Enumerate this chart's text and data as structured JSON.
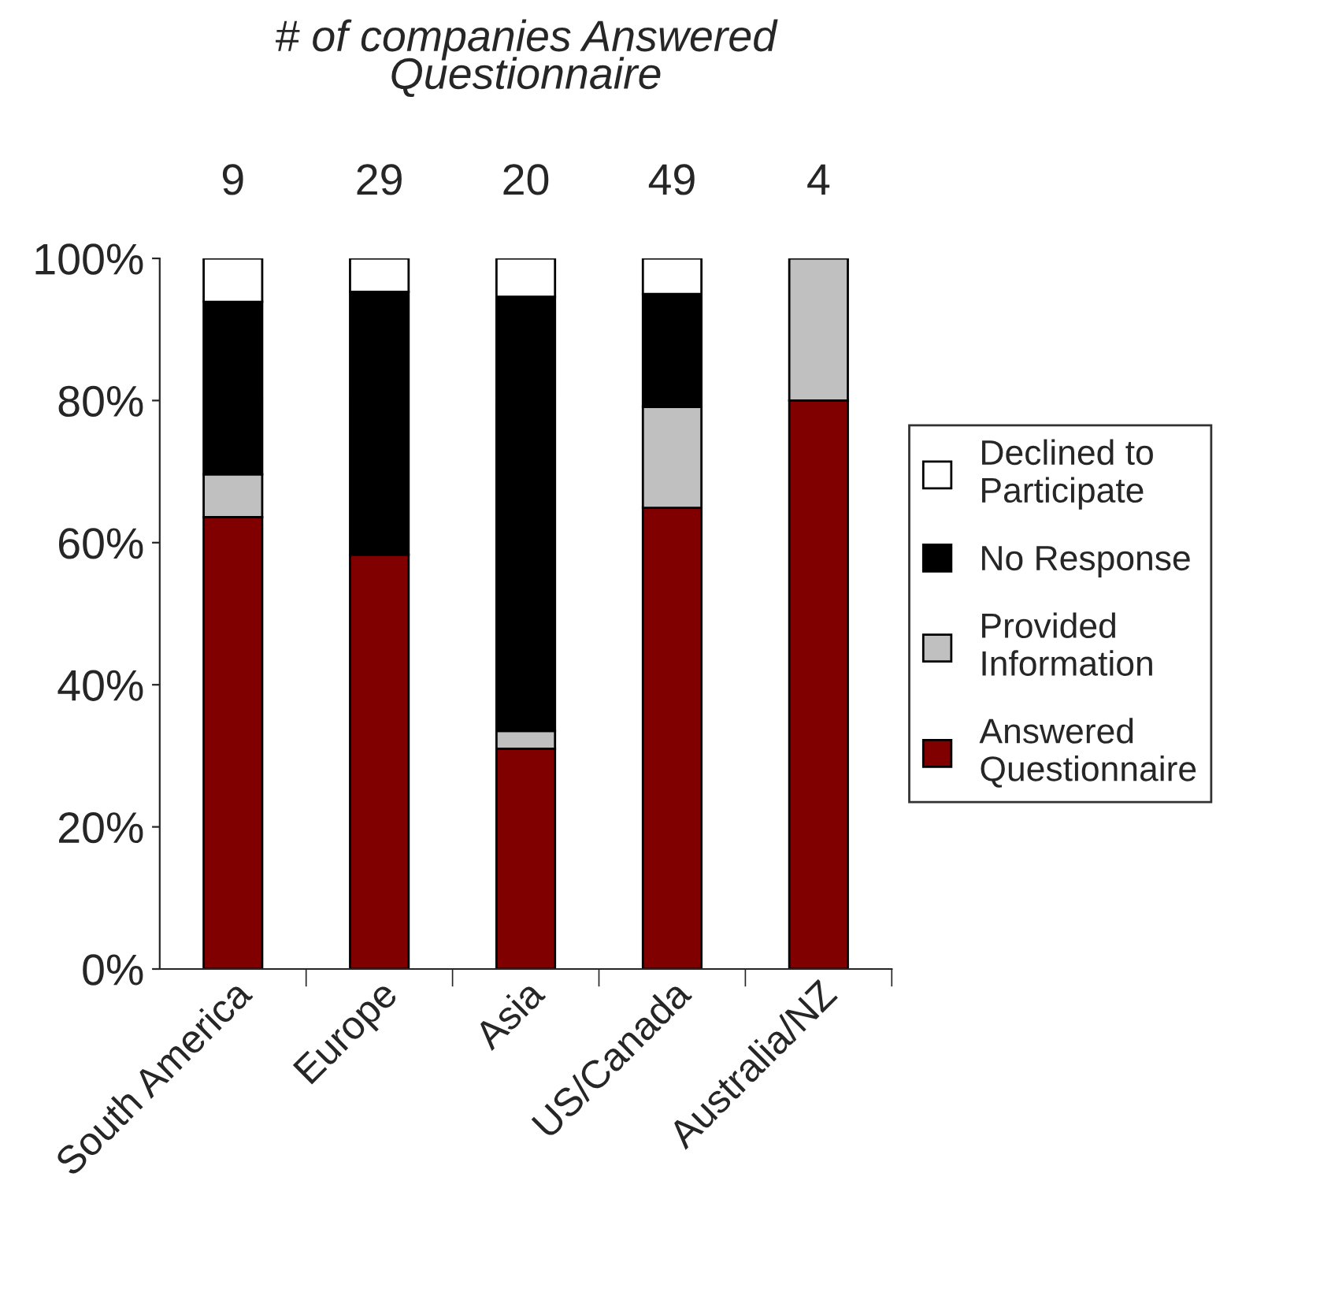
{
  "chart_data": {
    "type": "bar",
    "title": "# of companies Answered Questionnaire",
    "stacked": true,
    "categories": [
      "South America",
      "Europe",
      "Asia",
      "US/Canada",
      "Australia/NZ"
    ],
    "series": [
      {
        "name": "Answered Questionnaire",
        "color": "#800000",
        "values": [
          63.6,
          58.3,
          31,
          64.9,
          80
        ]
      },
      {
        "name": "Provided Information",
        "color": "#c0c0c0",
        "values": [
          6,
          null,
          2.5,
          14.2,
          20
        ]
      },
      {
        "name": "No Response",
        "color": "#000000",
        "values": [
          24.3,
          37,
          61.1,
          15.9,
          null
        ]
      },
      {
        "name": "Declined to Participate",
        "color": "#ffffff",
        "values": [
          6.1,
          4.7,
          5.4,
          5,
          null
        ]
      }
    ],
    "ylim": [
      0,
      100
    ],
    "yticks": [
      {
        "value": 0,
        "label": "0%"
      },
      {
        "value": 20,
        "label": "20%"
      },
      {
        "value": 40,
        "label": "40%"
      },
      {
        "value": 60,
        "label": "60%"
      },
      {
        "value": 80,
        "label": "80%"
      },
      {
        "value": 100,
        "label": "100%"
      }
    ],
    "annotations": [
      "9",
      "29",
      "20",
      "49",
      "4"
    ],
    "legend": "right",
    "grid": false
  }
}
